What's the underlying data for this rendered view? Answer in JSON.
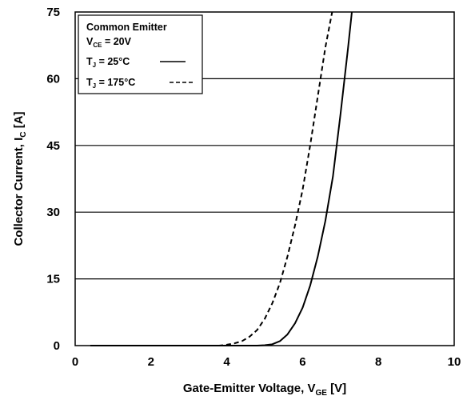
{
  "chart_data": {
    "type": "line",
    "xlabel": {
      "main": "Gate-Emitter Voltage, V",
      "sub": "GE",
      "unit": " [V]"
    },
    "ylabel": {
      "main": "Collector Current, I",
      "sub": "C",
      "unit": " [A]"
    },
    "xlim": [
      0,
      10
    ],
    "ylim": [
      0,
      75
    ],
    "x_ticks": [
      "0",
      "2",
      "4",
      "6",
      "8",
      "10"
    ],
    "y_ticks": [
      "0",
      "15",
      "30",
      "45",
      "60",
      "75"
    ],
    "grid": "horizontal",
    "legend": {
      "placement": "top-left",
      "title": "Common Emitter",
      "condition": {
        "main": "V",
        "sub": "CE",
        "rest": " = 20V"
      }
    },
    "series": [
      {
        "name": {
          "main": "T",
          "sub": "J",
          "rest": " = 25°C"
        },
        "style": "solid",
        "color": "#000000",
        "x": [
          0.4,
          4.8,
          5.0,
          5.2,
          5.4,
          5.6,
          5.8,
          6.0,
          6.2,
          6.4,
          6.6,
          6.8,
          7.0,
          7.2,
          7.3
        ],
        "y": [
          0,
          0,
          0.1,
          0.3,
          1,
          2.5,
          5,
          8.5,
          13.5,
          20,
          28,
          38,
          52,
          67,
          75
        ]
      },
      {
        "name": {
          "main": "T",
          "sub": "J",
          "rest": " = 175°C"
        },
        "style": "dashed",
        "color": "#000000",
        "x": [
          0.4,
          3.8,
          4.0,
          4.2,
          4.4,
          4.6,
          4.8,
          5.0,
          5.2,
          5.4,
          5.6,
          5.8,
          6.0,
          6.2,
          6.4,
          6.6,
          6.78
        ],
        "y": [
          0,
          0,
          0.2,
          0.5,
          1,
          2,
          3.5,
          6,
          9.5,
          14,
          20,
          27,
          35,
          45,
          56,
          67,
          75
        ]
      }
    ]
  }
}
